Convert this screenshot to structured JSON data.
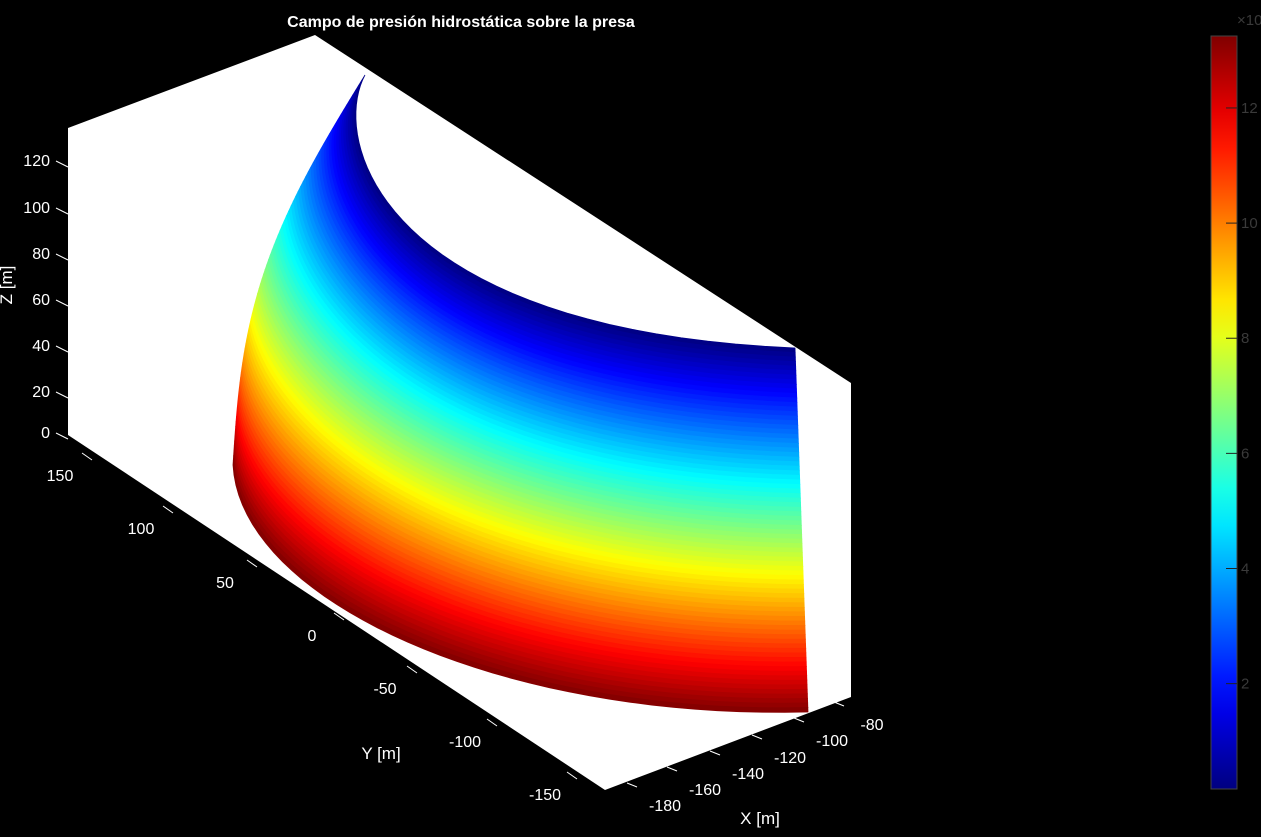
{
  "chart_data": {
    "type": "surface",
    "title": "Campo de presión hidrostática sobre la presa",
    "xlabel": "X [m]",
    "ylabel": "Y [m]",
    "zlabel": "Z [m]",
    "x_ticks": [
      "-180",
      "-160",
      "-140",
      "-120",
      "-100",
      "-80"
    ],
    "y_ticks": [
      "150",
      "100",
      "50",
      "0",
      "-50",
      "-100",
      "-150"
    ],
    "z_ticks": [
      "0",
      "20",
      "40",
      "60",
      "80",
      "100",
      "120"
    ],
    "xlim": [
      -190,
      -70
    ],
    "ylim": [
      -170,
      170
    ],
    "zlim": [
      0,
      135
    ],
    "colormap": "jet",
    "colorbar": {
      "ticks": [
        "2",
        "4",
        "6",
        "8",
        "10",
        "12"
      ],
      "tick_values": [
        2,
        4,
        6,
        8,
        10,
        12
      ],
      "range": [
        0.17,
        13.25
      ],
      "exponent_label": "×10"
    },
    "background": "#000000",
    "axes_face": "#ffffff"
  }
}
